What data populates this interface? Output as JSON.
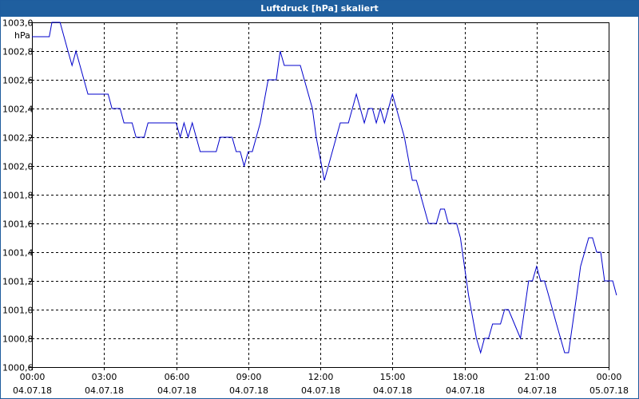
{
  "window": {
    "title": "Luftdruck [hPa] skaliert"
  },
  "chart_data": {
    "type": "line",
    "title": "Luftdruck [hPa] skaliert",
    "ylabel": "hPa",
    "ylim": [
      1000.6,
      1003.0
    ],
    "xlim": [
      0,
      24
    ],
    "grid": true,
    "line_color": "#0000cc",
    "grid_color": "#000000",
    "y_ticks": [
      "1000,6",
      "1000,8",
      "1001,0",
      "1001,2",
      "1001,4",
      "1001,6",
      "1001,8",
      "1002,0",
      "1002,2",
      "1002,4",
      "1002,6",
      "1002,8",
      "1003,0"
    ],
    "x_ticks": [
      {
        "time": "00:00",
        "date": "04.07.18"
      },
      {
        "time": "03:00",
        "date": "04.07.18"
      },
      {
        "time": "06:00",
        "date": "04.07.18"
      },
      {
        "time": "09:00",
        "date": "04.07.18"
      },
      {
        "time": "12:00",
        "date": "04.07.18"
      },
      {
        "time": "15:00",
        "date": "04.07.18"
      },
      {
        "time": "18:00",
        "date": "04.07.18"
      },
      {
        "time": "21:00",
        "date": "04.07.18"
      },
      {
        "time": "00:00",
        "date": "05.07.18"
      }
    ],
    "series": [
      {
        "values": [
          [
            0.0,
            1002.9
          ],
          [
            0.72,
            1002.9
          ],
          [
            0.83,
            1003.0
          ],
          [
            1.17,
            1003.0
          ],
          [
            1.5,
            1002.8
          ],
          [
            1.67,
            1002.7
          ],
          [
            1.83,
            1002.8
          ],
          [
            2.33,
            1002.5
          ],
          [
            3.17,
            1002.5
          ],
          [
            3.33,
            1002.4
          ],
          [
            3.67,
            1002.4
          ],
          [
            3.83,
            1002.3
          ],
          [
            4.17,
            1002.3
          ],
          [
            4.33,
            1002.2
          ],
          [
            4.67,
            1002.2
          ],
          [
            4.83,
            1002.3
          ],
          [
            6.0,
            1002.3
          ],
          [
            6.17,
            1002.2
          ],
          [
            6.33,
            1002.3
          ],
          [
            6.5,
            1002.2
          ],
          [
            6.67,
            1002.3
          ],
          [
            7.0,
            1002.1
          ],
          [
            7.67,
            1002.1
          ],
          [
            7.83,
            1002.2
          ],
          [
            8.33,
            1002.2
          ],
          [
            8.5,
            1002.1
          ],
          [
            8.67,
            1002.1
          ],
          [
            8.83,
            1002.0
          ],
          [
            9.0,
            1002.1
          ],
          [
            9.17,
            1002.1
          ],
          [
            9.5,
            1002.3
          ],
          [
            9.83,
            1002.6
          ],
          [
            10.17,
            1002.6
          ],
          [
            10.33,
            1002.8
          ],
          [
            10.5,
            1002.7
          ],
          [
            11.17,
            1002.7
          ],
          [
            11.67,
            1002.4
          ],
          [
            11.83,
            1002.2
          ],
          [
            12.17,
            1001.9
          ],
          [
            12.83,
            1002.3
          ],
          [
            13.17,
            1002.3
          ],
          [
            13.5,
            1002.5
          ],
          [
            13.83,
            1002.3
          ],
          [
            14.0,
            1002.4
          ],
          [
            14.17,
            1002.4
          ],
          [
            14.33,
            1002.3
          ],
          [
            14.5,
            1002.4
          ],
          [
            14.67,
            1002.3
          ],
          [
            15.0,
            1002.5
          ],
          [
            15.5,
            1002.2
          ],
          [
            15.83,
            1001.9
          ],
          [
            16.0,
            1001.9
          ],
          [
            16.17,
            1001.8
          ],
          [
            16.5,
            1001.6
          ],
          [
            16.83,
            1001.6
          ],
          [
            17.0,
            1001.7
          ],
          [
            17.17,
            1001.7
          ],
          [
            17.33,
            1001.6
          ],
          [
            17.67,
            1001.6
          ],
          [
            17.83,
            1001.5
          ],
          [
            18.17,
            1001.1
          ],
          [
            18.5,
            1000.8
          ],
          [
            18.67,
            1000.7
          ],
          [
            18.83,
            1000.8
          ],
          [
            19.0,
            1000.8
          ],
          [
            19.17,
            1000.9
          ],
          [
            19.5,
            1000.9
          ],
          [
            19.67,
            1001.0
          ],
          [
            19.83,
            1001.0
          ],
          [
            20.33,
            1000.8
          ],
          [
            20.67,
            1001.2
          ],
          [
            20.83,
            1001.2
          ],
          [
            21.0,
            1001.3
          ],
          [
            21.17,
            1001.2
          ],
          [
            21.33,
            1001.2
          ],
          [
            21.5,
            1001.1
          ],
          [
            21.83,
            1000.9
          ],
          [
            22.17,
            1000.7
          ],
          [
            22.33,
            1000.7
          ],
          [
            22.67,
            1001.1
          ],
          [
            22.83,
            1001.3
          ],
          [
            23.17,
            1001.5
          ],
          [
            23.33,
            1001.5
          ],
          [
            23.5,
            1001.4
          ],
          [
            23.67,
            1001.4
          ],
          [
            23.83,
            1001.2
          ],
          [
            24.17,
            1001.2
          ],
          [
            24.33,
            1001.1
          ]
        ]
      }
    ]
  }
}
